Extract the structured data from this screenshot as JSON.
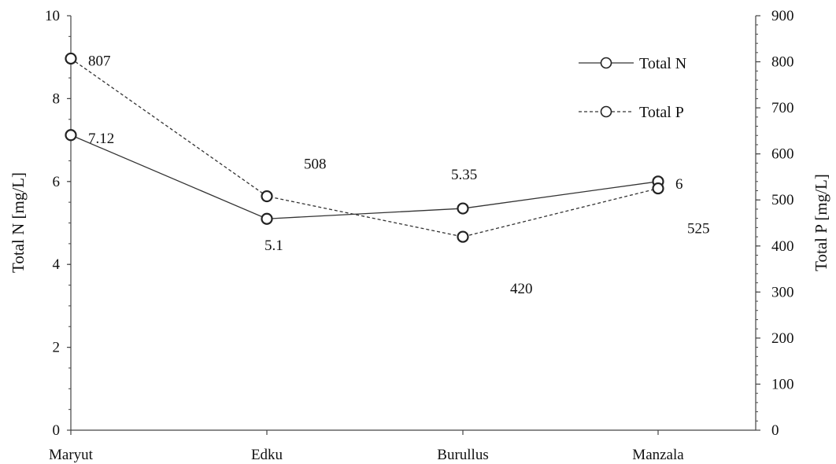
{
  "chart_data": {
    "type": "line",
    "categories": [
      "Maryut",
      "Edku",
      "Burullus",
      "Manzala"
    ],
    "y_left": {
      "label": "Total N [mg/L]",
      "range": [
        0,
        10
      ],
      "ticks": [
        0,
        2,
        4,
        6,
        8,
        10
      ]
    },
    "y_right": {
      "label": "Total P [mg/L]",
      "range": [
        0,
        900
      ],
      "ticks": [
        0,
        100,
        200,
        300,
        400,
        500,
        600,
        700,
        800,
        900
      ]
    },
    "series": [
      {
        "name": "Total N",
        "axis": "left",
        "values": [
          7.12,
          5.1,
          5.35,
          6
        ],
        "labels": [
          "7.12",
          "5.1",
          "5.35",
          "6"
        ],
        "line_style": "solid",
        "marker": "open-circle",
        "color": "#333333"
      },
      {
        "name": "Total P",
        "axis": "right",
        "values": [
          807,
          508,
          420,
          525
        ],
        "labels": [
          "807",
          "508",
          "420",
          "525"
        ],
        "line_style": "dashed",
        "marker": "open-circle",
        "color": "#333333"
      }
    ],
    "legend": {
      "placement": "top-right"
    },
    "grid": false
  }
}
